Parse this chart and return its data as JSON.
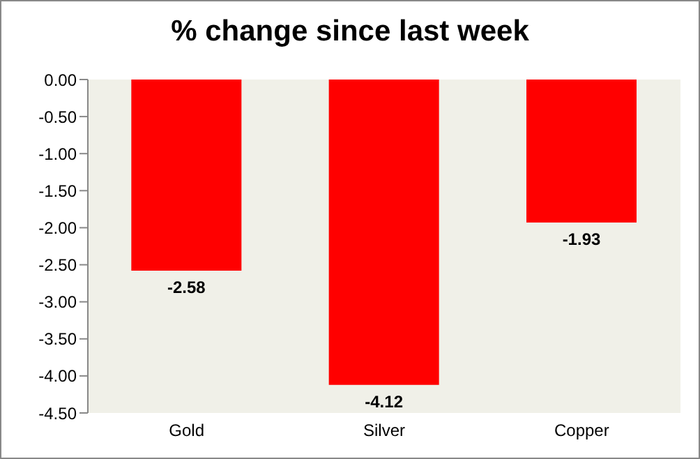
{
  "chart_data": {
    "type": "bar",
    "title": "% change since last week",
    "categories": [
      "Gold",
      "Silver",
      "Copper"
    ],
    "values": [
      -2.58,
      -4.12,
      -1.93
    ],
    "color": "#ff0000",
    "data_labels": true,
    "ylim": [
      -4.5,
      0
    ],
    "yticks": [
      {
        "value": 0,
        "label": "0.00"
      },
      {
        "value": -0.5,
        "label": "-0.50"
      },
      {
        "value": -1,
        "label": "-1.00"
      },
      {
        "value": -1.5,
        "label": "-1.50"
      },
      {
        "value": -2,
        "label": "-2.00"
      },
      {
        "value": -2.5,
        "label": "-2.50"
      },
      {
        "value": -3,
        "label": "-3.00"
      },
      {
        "value": -3.5,
        "label": "-3.50"
      },
      {
        "value": -4,
        "label": "-4.00"
      },
      {
        "value": -4.5,
        "label": "-4.50"
      }
    ],
    "legend": false
  }
}
